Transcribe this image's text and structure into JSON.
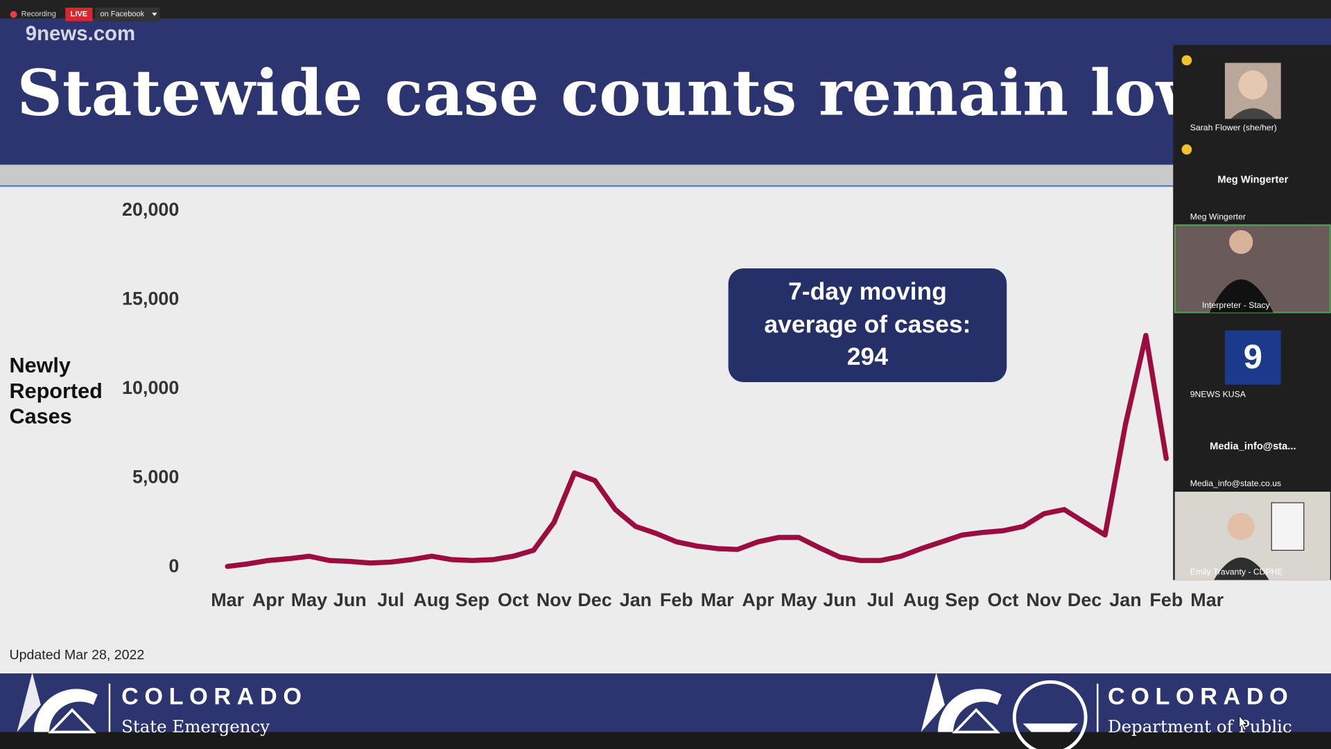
{
  "recording_bar": {
    "recording": "Recording",
    "live": "LIVE",
    "destination": "on Facebook"
  },
  "watermark": "9news.com",
  "header": {
    "title": "Statewide case counts remain low."
  },
  "chart_data": {
    "type": "line",
    "y_label": [
      "Newly",
      "Reported",
      "Cases"
    ],
    "categories": [
      "Mar",
      null,
      "Apr",
      null,
      "May",
      null,
      "Jun",
      null,
      "Jul",
      null,
      "Aug",
      null,
      "Sep",
      null,
      "Oct",
      null,
      "Nov",
      null,
      "Dec",
      null,
      "Jan",
      null,
      "Feb",
      null,
      "Mar",
      null,
      "Apr",
      null,
      "May",
      null,
      "Jun",
      null,
      "Jul",
      null,
      "Aug",
      null,
      "Sep",
      null,
      "Oct",
      null,
      "Nov",
      null,
      "Dec",
      null,
      "Jan",
      null,
      "Feb",
      null,
      "Mar"
    ],
    "values": [
      50,
      190,
      380,
      480,
      620,
      380,
      330,
      240,
      290,
      430,
      620,
      430,
      380,
      430,
      620,
      950,
      2520,
      5290,
      4860,
      3240,
      2290,
      1900,
      1430,
      1190,
      1050,
      1000,
      1430,
      1670,
      1670,
      1100,
      570,
      380,
      380,
      620,
      1050,
      1430,
      1810,
      1950,
      2050,
      2290,
      3000,
      3240,
      2520,
      1810,
      8000,
      13000,
      6100,
      null,
      null
    ],
    "color": "#9b0d3f",
    "ylim": [
      0,
      20000
    ],
    "yticks": [
      0,
      {
        "value": 5000,
        "label": "5,000"
      },
      {
        "value": 10000,
        "label": "10,000"
      },
      {
        "value": 15000,
        "label": "15,000"
      },
      {
        "value": 20000,
        "label": "20,000"
      }
    ],
    "grid": false,
    "annotation": [
      "7-day moving",
      "average of cases:",
      "294"
    ],
    "note": "Updated Mar 28, 2022"
  },
  "participants": [
    {
      "label": "Sarah Flower (she/her)"
    },
    {
      "display": "Meg Wingerter",
      "label": "Meg Wingerter"
    },
    {
      "label": "Interpreter - Stacy"
    },
    {
      "label": "9NEWS KUSA"
    },
    {
      "display": "Media_info@sta...",
      "label": "Media_info@state.co.us"
    },
    {
      "label": "Emily Travanty - CDPHE"
    }
  ],
  "footer": {
    "left_name": "COLORADO",
    "left_sub": "State Emergency",
    "right_name": "COLORADO",
    "right_sub": "Department of Public"
  }
}
